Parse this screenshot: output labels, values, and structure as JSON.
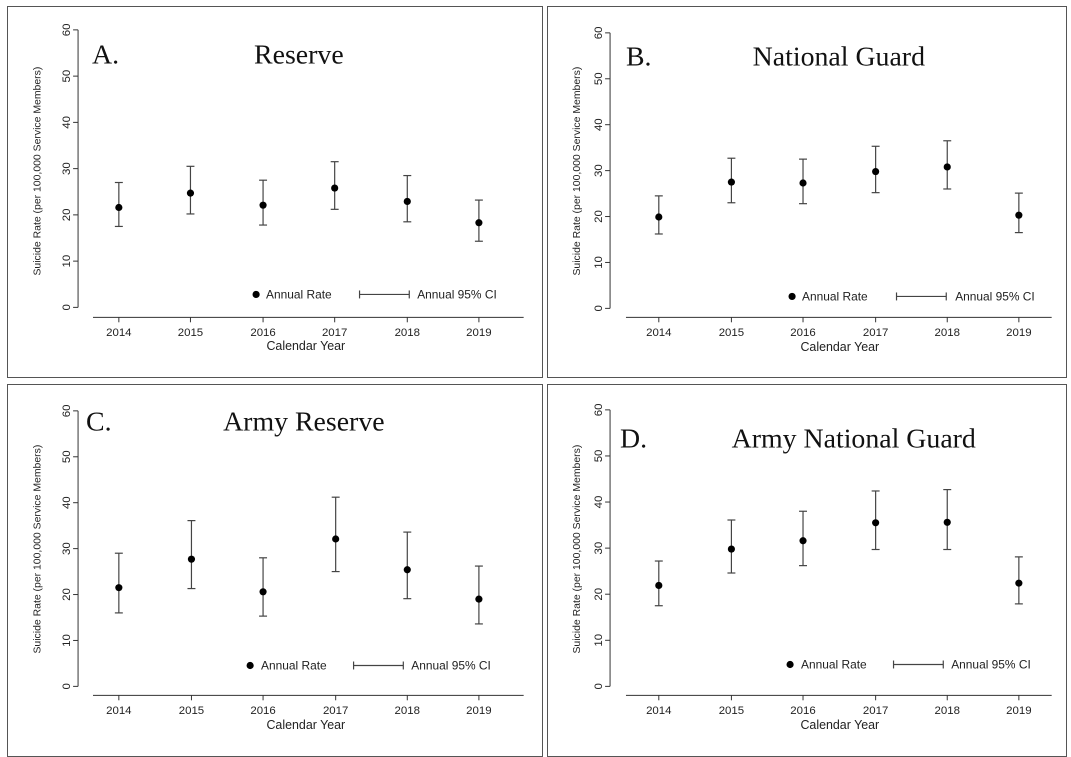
{
  "legend": {
    "point_label": "Annual Rate",
    "ci_label": "Annual 95% CI"
  },
  "xlabel": "Calendar Year",
  "ylabel": "Suicide Rate (per 100,000 Service Members)",
  "colors": {
    "point": "#000000",
    "ci": "#444444",
    "frame": "#555555"
  },
  "chart_data": [
    {
      "type": "scatter",
      "panel_letter": "A.",
      "title": "Reserve",
      "xlabel": "Calendar Year",
      "ylabel": "Suicide Rate (per 100,000 Service Members)",
      "categories": [
        "2014",
        "2015",
        "2016",
        "2017",
        "2018",
        "2019"
      ],
      "yticks": [
        "0",
        "10",
        "20",
        "30",
        "40",
        "50",
        "60"
      ],
      "ylim": [
        0,
        60
      ],
      "series": [
        {
          "name": "Annual Rate",
          "values": [
            21.6,
            24.7,
            22.1,
            25.8,
            22.9,
            18.3
          ]
        }
      ],
      "ci_lower": [
        17.5,
        20.2,
        17.8,
        21.2,
        18.5,
        14.3
      ],
      "ci_upper": [
        27.0,
        30.5,
        27.5,
        31.5,
        28.5,
        23.2
      ],
      "grid": false,
      "legend_position": "bottom-right"
    },
    {
      "type": "scatter",
      "panel_letter": "B.",
      "title": "National Guard",
      "xlabel": "Calendar Year",
      "ylabel": "Suicide Rate (per 100,000 Service Members)",
      "categories": [
        "2014",
        "2015",
        "2016",
        "2017",
        "2018",
        "2019"
      ],
      "yticks": [
        "0",
        "10",
        "20",
        "30",
        "40",
        "50",
        "60"
      ],
      "ylim": [
        0,
        60
      ],
      "series": [
        {
          "name": "Annual Rate",
          "values": [
            19.9,
            27.5,
            27.3,
            29.8,
            30.8,
            20.3
          ]
        }
      ],
      "ci_lower": [
        16.2,
        23.0,
        22.8,
        25.2,
        26.0,
        16.5
      ],
      "ci_upper": [
        24.5,
        32.7,
        32.5,
        35.3,
        36.5,
        25.1
      ],
      "grid": false,
      "legend_position": "bottom-right"
    },
    {
      "type": "scatter",
      "panel_letter": "C.",
      "title": "Army Reserve",
      "xlabel": "Calendar Year",
      "ylabel": "Suicide Rate (per 100,000 Service Members)",
      "categories": [
        "2014",
        "2015",
        "2016",
        "2017",
        "2018",
        "2019"
      ],
      "yticks": [
        "0",
        "10",
        "20",
        "30",
        "40",
        "50",
        "60"
      ],
      "ylim": [
        0,
        60
      ],
      "series": [
        {
          "name": "Annual Rate",
          "values": [
            21.5,
            27.7,
            20.6,
            32.1,
            25.4,
            19.0
          ]
        }
      ],
      "ci_lower": [
        16.0,
        21.3,
        15.3,
        25.0,
        19.1,
        13.6
      ],
      "ci_upper": [
        29.0,
        36.1,
        28.0,
        41.2,
        33.6,
        26.2
      ],
      "grid": false,
      "legend_position": "bottom-right"
    },
    {
      "type": "scatter",
      "panel_letter": "D.",
      "title": "Army National Guard",
      "xlabel": "Calendar Year",
      "ylabel": "Suicide Rate (per 100,000 Service Members)",
      "categories": [
        "2014",
        "2015",
        "2016",
        "2017",
        "2018",
        "2019"
      ],
      "yticks": [
        "0",
        "10",
        "20",
        "30",
        "40",
        "50",
        "60"
      ],
      "ylim": [
        0,
        60
      ],
      "series": [
        {
          "name": "Annual Rate",
          "values": [
            21.9,
            29.8,
            31.6,
            35.5,
            35.6,
            22.4
          ]
        }
      ],
      "ci_lower": [
        17.5,
        24.6,
        26.2,
        29.7,
        29.7,
        17.9
      ],
      "ci_upper": [
        27.2,
        36.1,
        38.0,
        42.4,
        42.7,
        28.1
      ],
      "grid": false,
      "legend_position": "bottom-right"
    }
  ]
}
